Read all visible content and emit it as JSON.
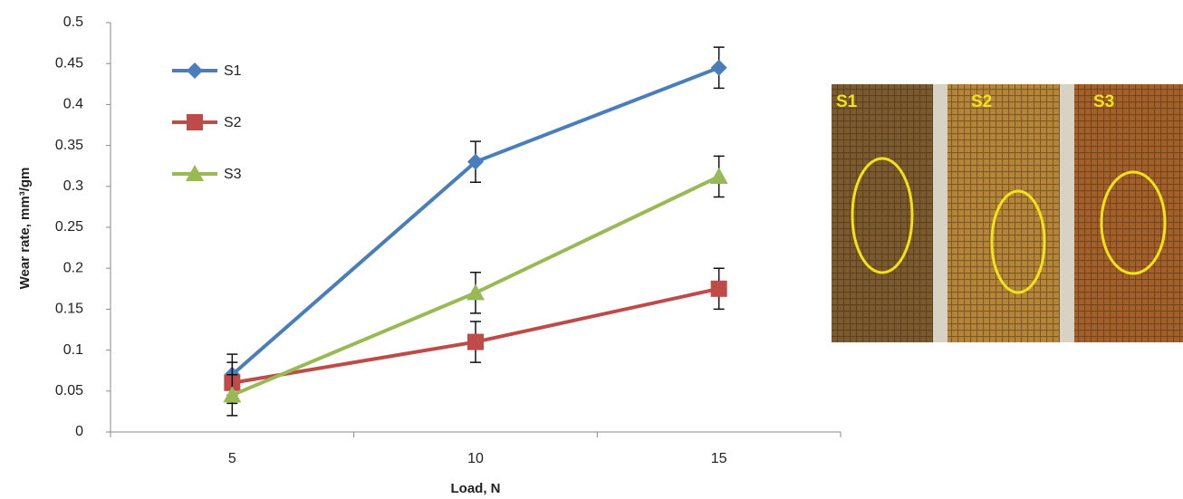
{
  "chart_data": {
    "type": "line",
    "x_label": "Load, N",
    "y_label": "Wear rate, mm³/gm",
    "categories": [
      "5",
      "10",
      "15"
    ],
    "series": [
      {
        "name": "S1",
        "color": "#4a7ebb",
        "marker": "diamond",
        "values": [
          0.07,
          0.33,
          0.445
        ],
        "errors": [
          0.025,
          0.025,
          0.025
        ]
      },
      {
        "name": "S2",
        "color": "#be4b48",
        "marker": "square",
        "values": [
          0.06,
          0.11,
          0.175
        ],
        "errors": [
          0.025,
          0.025,
          0.025
        ]
      },
      {
        "name": "S3",
        "color": "#98b954",
        "marker": "triangle",
        "values": [
          0.045,
          0.17,
          0.312
        ],
        "errors": [
          0.025,
          0.025,
          0.025
        ]
      }
    ],
    "ylim": [
      0,
      0.5
    ],
    "yticks": [
      0,
      0.05,
      0.1,
      0.15,
      0.2,
      0.25,
      0.3,
      0.35,
      0.4,
      0.45,
      0.5
    ],
    "legend": "upper-left"
  },
  "photo": {
    "labels": [
      "S1",
      "S2",
      "S3"
    ]
  }
}
